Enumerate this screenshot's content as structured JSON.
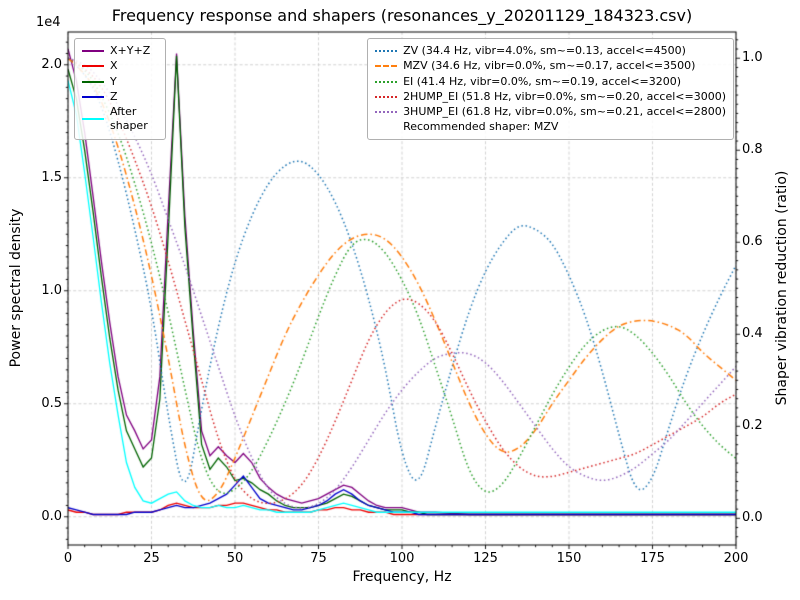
{
  "chart_data": {
    "type": "line",
    "title": "Frequency response and shapers (resonances_y_20201129_184323.csv)",
    "xlabel": "Frequency, Hz",
    "ylabel_left": "Power spectral density",
    "ylabel_right": "Shaper vibration reduction (ratio)",
    "offset_text": "1e4",
    "legend_note": "Recommended shaper: MZV",
    "xlim": [
      0,
      200
    ],
    "ylim_left": [
      -0.125,
      2.145
    ],
    "ylim_right": [
      -0.058,
      1.057
    ],
    "x_ticks": {
      "values": [
        0,
        25,
        50,
        75,
        100,
        125,
        150,
        175,
        200
      ],
      "labels": [
        "0",
        "25",
        "50",
        "75",
        "100",
        "125",
        "150",
        "175",
        "200"
      ]
    },
    "y_ticks_left": {
      "values": [
        0,
        0.5,
        1.0,
        1.5,
        2.0
      ],
      "labels": [
        "0.0",
        "0.5",
        "1.0",
        "1.5",
        "2.0"
      ]
    },
    "y_ticks_right": {
      "values": [
        0,
        0.2,
        0.4,
        0.6,
        0.8,
        1.0
      ],
      "labels": [
        "0.0",
        "0.2",
        "0.4",
        "0.6",
        "0.8",
        "1.0"
      ]
    },
    "grid": true,
    "psd_x": [
      0,
      2.5,
      5,
      7.5,
      10,
      12.5,
      15,
      17.5,
      20,
      22.5,
      25,
      27.5,
      30,
      32.5,
      35,
      37.5,
      40,
      42.5,
      45,
      47.5,
      50,
      52.5,
      55,
      57.5,
      60,
      62.5,
      65,
      67.5,
      70,
      72.5,
      75,
      77.5,
      80,
      82.5,
      85,
      87.5,
      90,
      92.5,
      95,
      97.5,
      100,
      102.5,
      105,
      107.5,
      110,
      120,
      130,
      140,
      150,
      160,
      170,
      180,
      190,
      200
    ],
    "psd_series": [
      {
        "id": "xyz",
        "label": "X+Y+Z",
        "color": "#800080",
        "linestyle": "solid",
        "values": [
          2.07,
          1.93,
          1.7,
          1.42,
          1.13,
          0.86,
          0.62,
          0.45,
          0.38,
          0.3,
          0.34,
          0.62,
          1.35,
          2.05,
          1.33,
          0.82,
          0.38,
          0.27,
          0.31,
          0.27,
          0.24,
          0.28,
          0.24,
          0.17,
          0.13,
          0.1,
          0.08,
          0.07,
          0.06,
          0.07,
          0.08,
          0.1,
          0.12,
          0.14,
          0.13,
          0.1,
          0.07,
          0.05,
          0.04,
          0.04,
          0.04,
          0.03,
          0.02,
          0.02,
          0.02,
          0.01,
          0.01,
          0.01,
          0.01,
          0.01,
          0.01,
          0.01,
          0.01,
          0.01
        ]
      },
      {
        "id": "x",
        "label": "X",
        "color": "#ee0000",
        "linestyle": "solid",
        "values": [
          0.03,
          0.02,
          0.02,
          0.01,
          0.01,
          0.01,
          0.01,
          0.02,
          0.02,
          0.02,
          0.02,
          0.03,
          0.05,
          0.06,
          0.05,
          0.04,
          0.04,
          0.04,
          0.05,
          0.05,
          0.06,
          0.06,
          0.05,
          0.04,
          0.03,
          0.03,
          0.02,
          0.02,
          0.02,
          0.02,
          0.03,
          0.03,
          0.04,
          0.04,
          0.03,
          0.03,
          0.02,
          0.02,
          0.02,
          0.01,
          0.01,
          0.01,
          0.01,
          0.01,
          0.01,
          0.01,
          0.01,
          0.01,
          0.01,
          0.01,
          0.01,
          0.01,
          0.01,
          0.01
        ]
      },
      {
        "id": "y",
        "label": "Y",
        "color": "#006400",
        "linestyle": "solid",
        "values": [
          1.98,
          1.85,
          1.62,
          1.35,
          1.06,
          0.79,
          0.56,
          0.38,
          0.3,
          0.22,
          0.26,
          0.52,
          1.25,
          2.04,
          1.28,
          0.78,
          0.32,
          0.21,
          0.26,
          0.22,
          0.16,
          0.17,
          0.15,
          0.12,
          0.1,
          0.07,
          0.05,
          0.04,
          0.04,
          0.04,
          0.05,
          0.06,
          0.08,
          0.1,
          0.09,
          0.07,
          0.05,
          0.04,
          0.03,
          0.03,
          0.03,
          0.02,
          0.02,
          0.01,
          0.01,
          0.01,
          0.01,
          0.01,
          0.01,
          0.01,
          0.01,
          0.01,
          0.01,
          0.01
        ]
      },
      {
        "id": "z",
        "label": "Z",
        "color": "#0000cd",
        "linestyle": "solid",
        "values": [
          0.04,
          0.03,
          0.02,
          0.01,
          0.01,
          0.01,
          0.01,
          0.01,
          0.02,
          0.02,
          0.02,
          0.03,
          0.04,
          0.05,
          0.04,
          0.04,
          0.05,
          0.06,
          0.08,
          0.1,
          0.14,
          0.18,
          0.13,
          0.08,
          0.06,
          0.05,
          0.04,
          0.03,
          0.03,
          0.04,
          0.05,
          0.07,
          0.1,
          0.12,
          0.1,
          0.07,
          0.05,
          0.04,
          0.03,
          0.02,
          0.02,
          0.02,
          0.01,
          0.01,
          0.01,
          0.01,
          0.01,
          0.01,
          0.01,
          0.01,
          0.01,
          0.01,
          0.01,
          0.01
        ]
      },
      {
        "id": "after_shaper",
        "label": "After shaper",
        "color": "#00ffff",
        "linestyle": "solid",
        "values": [
          1.93,
          1.78,
          1.52,
          1.24,
          0.95,
          0.68,
          0.45,
          0.24,
          0.13,
          0.07,
          0.06,
          0.08,
          0.1,
          0.11,
          0.07,
          0.05,
          0.04,
          0.04,
          0.05,
          0.04,
          0.04,
          0.05,
          0.04,
          0.03,
          0.03,
          0.02,
          0.02,
          0.02,
          0.02,
          0.02,
          0.03,
          0.04,
          0.05,
          0.06,
          0.05,
          0.04,
          0.03,
          0.02,
          0.02,
          0.02,
          0.02,
          0.02,
          0.02,
          0.02,
          0.02,
          0.02,
          0.02,
          0.02,
          0.02,
          0.02,
          0.02,
          0.02,
          0.02,
          0.02
        ]
      }
    ],
    "shaper_x": [
      0,
      5,
      10,
      15,
      20,
      25,
      30,
      35,
      40,
      45,
      50,
      55,
      60,
      65,
      70,
      75,
      80,
      85,
      90,
      95,
      100,
      105,
      110,
      115,
      120,
      125,
      130,
      135,
      140,
      145,
      150,
      155,
      160,
      165,
      170,
      175,
      180,
      185,
      190,
      195,
      200
    ],
    "shaper_series": [
      {
        "id": "zv",
        "label": "ZV (34.4 Hz, vibr=4.0%, sm~=0.13, accel<=4500)",
        "color": "#1f77b4",
        "linestyle": "dotted",
        "values": [
          1.0,
          0.97,
          0.9,
          0.78,
          0.63,
          0.46,
          0.22,
          0.03,
          0.24,
          0.42,
          0.56,
          0.66,
          0.73,
          0.77,
          0.78,
          0.75,
          0.69,
          0.6,
          0.48,
          0.33,
          0.13,
          0.06,
          0.2,
          0.33,
          0.45,
          0.54,
          0.6,
          0.64,
          0.63,
          0.6,
          0.53,
          0.44,
          0.32,
          0.18,
          0.05,
          0.08,
          0.2,
          0.31,
          0.4,
          0.48,
          0.55
        ]
      },
      {
        "id": "mzv",
        "label": "MZV (34.6 Hz, vibr=0.0%, sm~=0.17, accel<=3500)",
        "color": "#ff7f0e",
        "linestyle": "dashdot",
        "values": [
          1.0,
          0.97,
          0.91,
          0.81,
          0.68,
          0.53,
          0.35,
          0.15,
          0.03,
          0.05,
          0.13,
          0.22,
          0.31,
          0.4,
          0.47,
          0.53,
          0.58,
          0.61,
          0.62,
          0.61,
          0.57,
          0.51,
          0.43,
          0.34,
          0.25,
          0.18,
          0.14,
          0.15,
          0.19,
          0.25,
          0.3,
          0.35,
          0.39,
          0.42,
          0.43,
          0.43,
          0.42,
          0.4,
          0.36,
          0.33,
          0.3
        ]
      },
      {
        "id": "ei",
        "label": "EI (41.4 Hz, vibr=0.0%, sm~=0.19, accel<=3200)",
        "color": "#2ca02c",
        "linestyle": "dotted",
        "values": [
          1.0,
          0.98,
          0.92,
          0.84,
          0.73,
          0.6,
          0.45,
          0.28,
          0.12,
          0.05,
          0.06,
          0.1,
          0.17,
          0.25,
          0.34,
          0.44,
          0.53,
          0.6,
          0.61,
          0.58,
          0.52,
          0.44,
          0.33,
          0.22,
          0.1,
          0.05,
          0.07,
          0.13,
          0.2,
          0.27,
          0.33,
          0.38,
          0.41,
          0.42,
          0.4,
          0.36,
          0.31,
          0.25,
          0.2,
          0.16,
          0.13
        ]
      },
      {
        "id": "2hump_ei",
        "label": "2HUMP_EI (51.8 Hz, vibr=0.0%, sm~=0.20, accel<=3000)",
        "color": "#d62728",
        "linestyle": "dotted",
        "values": [
          1.0,
          0.98,
          0.94,
          0.87,
          0.78,
          0.68,
          0.56,
          0.43,
          0.3,
          0.17,
          0.08,
          0.04,
          0.03,
          0.04,
          0.07,
          0.13,
          0.21,
          0.3,
          0.39,
          0.45,
          0.48,
          0.47,
          0.43,
          0.36,
          0.28,
          0.21,
          0.15,
          0.11,
          0.09,
          0.09,
          0.1,
          0.11,
          0.12,
          0.13,
          0.14,
          0.16,
          0.18,
          0.2,
          0.22,
          0.25,
          0.27
        ]
      },
      {
        "id": "3hump_ei",
        "label": "3HUMP_EI (61.8 Hz, vibr=0.0%, sm~=0.21, accel<=2800)",
        "color": "#9467bd",
        "linestyle": "dotted",
        "values": [
          1.0,
          0.99,
          0.95,
          0.9,
          0.83,
          0.75,
          0.65,
          0.55,
          0.44,
          0.33,
          0.22,
          0.13,
          0.06,
          0.03,
          0.02,
          0.03,
          0.06,
          0.11,
          0.17,
          0.23,
          0.28,
          0.32,
          0.35,
          0.36,
          0.36,
          0.34,
          0.3,
          0.25,
          0.2,
          0.15,
          0.11,
          0.09,
          0.08,
          0.09,
          0.11,
          0.14,
          0.17,
          0.21,
          0.25,
          0.29,
          0.33
        ]
      }
    ]
  }
}
